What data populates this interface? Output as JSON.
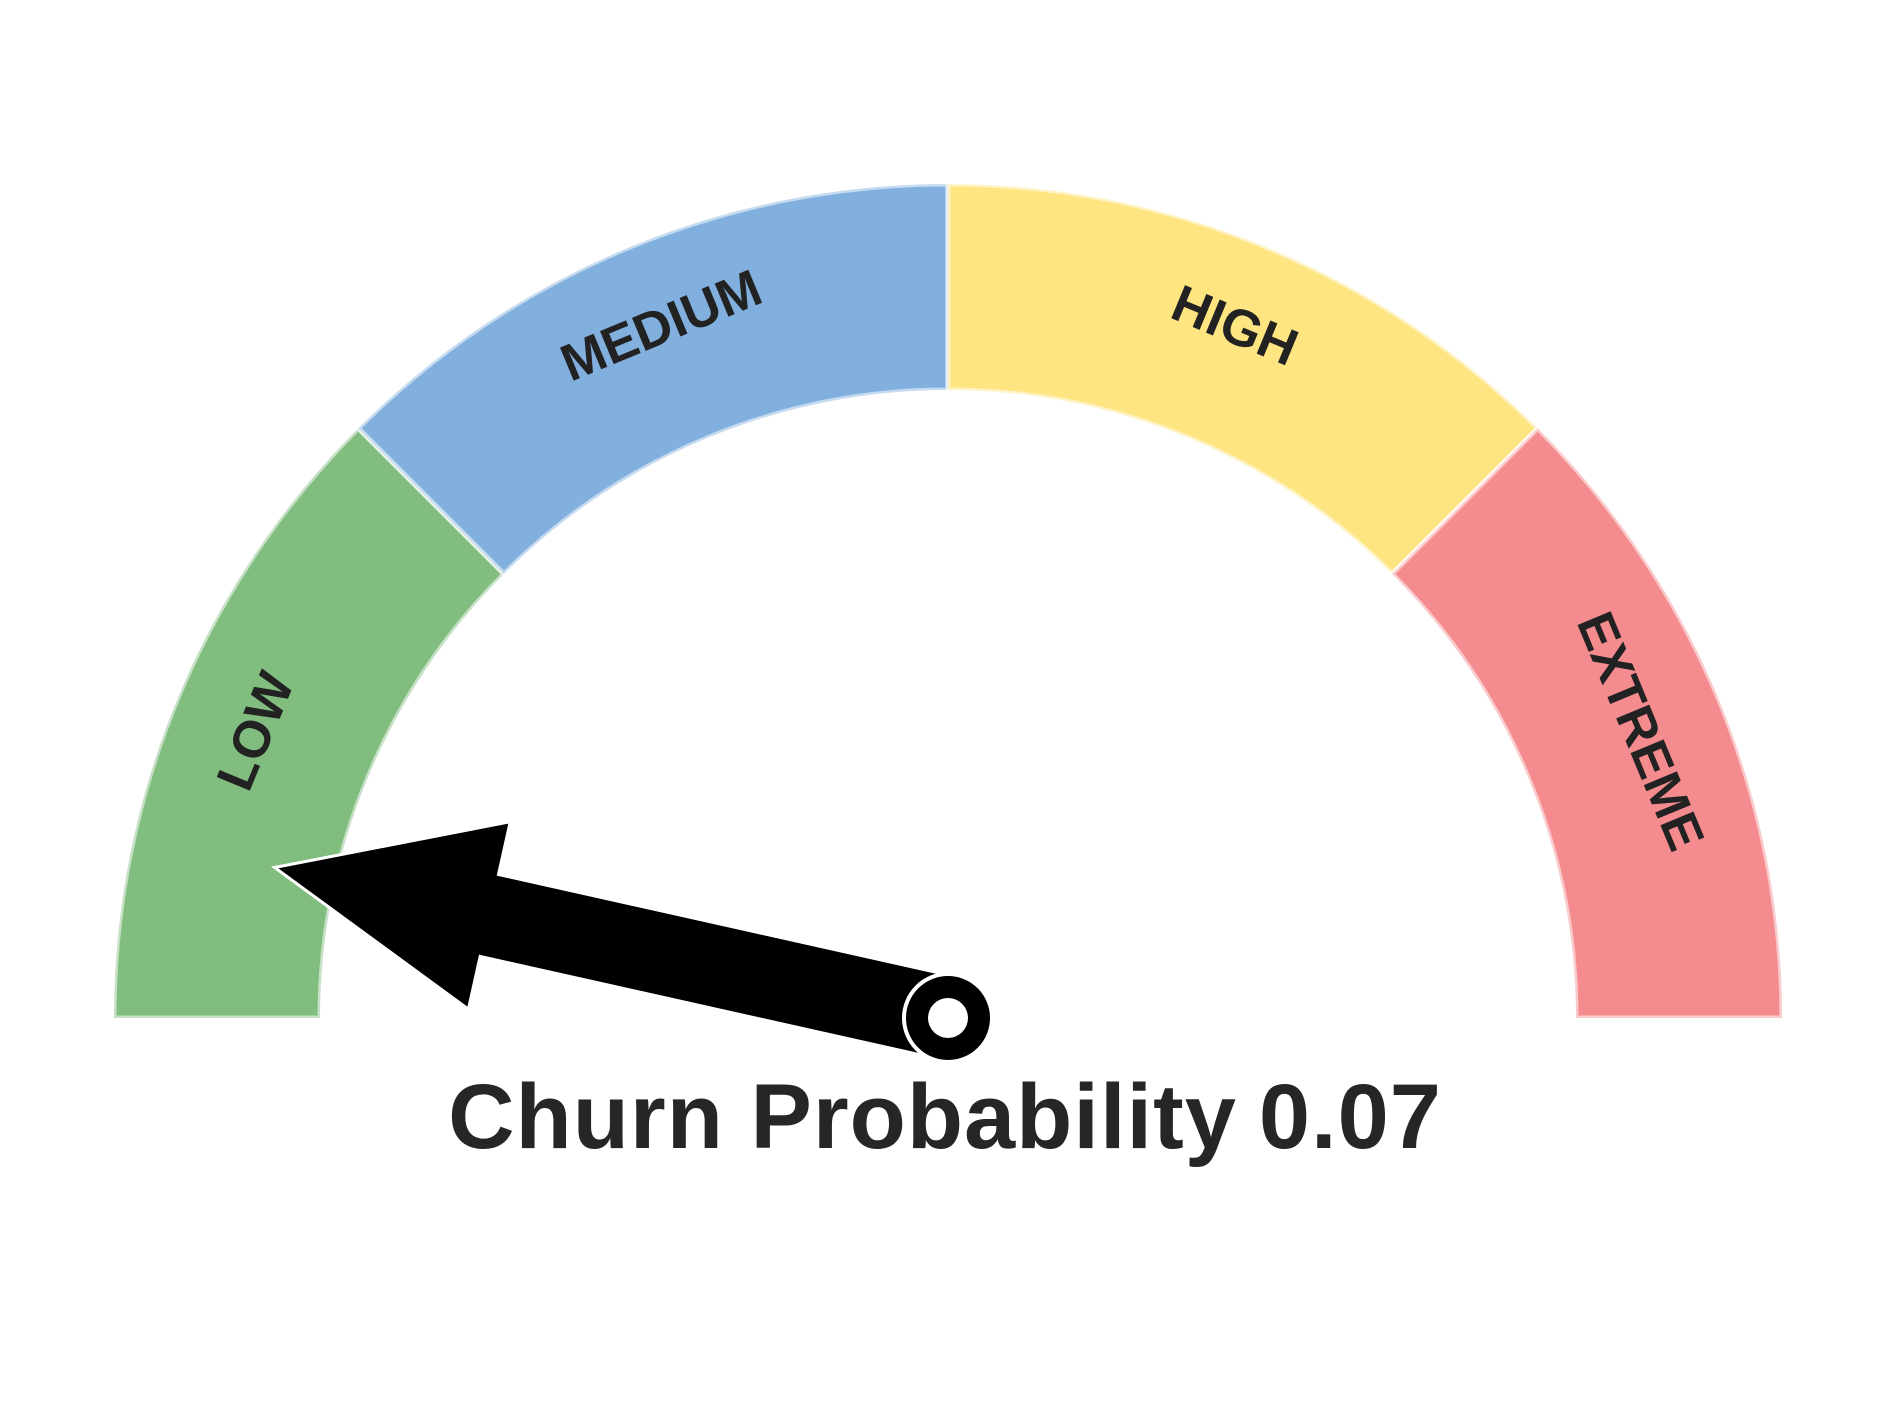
{
  "chart_data": {
    "type": "gauge",
    "title_prefix": "Churn Probability",
    "value": 0.07,
    "value_label": "0.07",
    "range": [
      0,
      1
    ],
    "segments": [
      {
        "label": "LOW",
        "from": 0.0,
        "to": 0.25,
        "color": "#80bd7f"
      },
      {
        "label": "MEDIUM",
        "from": 0.25,
        "to": 0.5,
        "color": "#81afde"
      },
      {
        "label": "HIGH",
        "from": 0.5,
        "to": 0.75,
        "color": "#ffe582"
      },
      {
        "label": "EXTREME",
        "from": 0.75,
        "to": 1.0,
        "color": "#f48c8f"
      }
    ],
    "needle_color": "#000000"
  }
}
